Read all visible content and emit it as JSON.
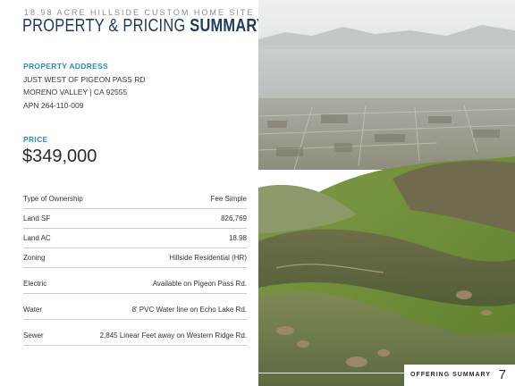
{
  "header": {
    "eyebrow": "18.98 ACRE HILLSIDE CUSTOM HOME SITE",
    "title_thin": "PROPERTY & PRICING ",
    "title_bold": "SUMMARY"
  },
  "address": {
    "label": "PROPERTY ADDRESS",
    "line1": "JUST WEST OF PIGEON PASS RD",
    "line2": "MORENO VALLEY | CA 92555",
    "line3": "APN 264-110-009"
  },
  "price": {
    "label": "PRICE",
    "value": "$349,000"
  },
  "specs": [
    {
      "key": "Type of Ownership",
      "value": "Fee Simple"
    },
    {
      "key": "Land SF",
      "value": "826,769"
    },
    {
      "key": "Land AC",
      "value": "18.98"
    },
    {
      "key": "Zoning",
      "value": "Hillside Residential (HR)"
    },
    {
      "key": "Electric",
      "value": "Available on Pigeon Pass Rd."
    },
    {
      "key": "Water",
      "value": "8' PVC Water line on Echo Lake Rd."
    },
    {
      "key": "Sewer",
      "value": "2,845 Linear Feet away on Western Ridge Rd."
    }
  ],
  "footer": {
    "section": "OFFERING SUMMARY",
    "page_number": "7"
  },
  "colors": {
    "title": "#1d3b5e",
    "label_accent": "#2c8fb8",
    "rule": "#c9cdd2"
  }
}
